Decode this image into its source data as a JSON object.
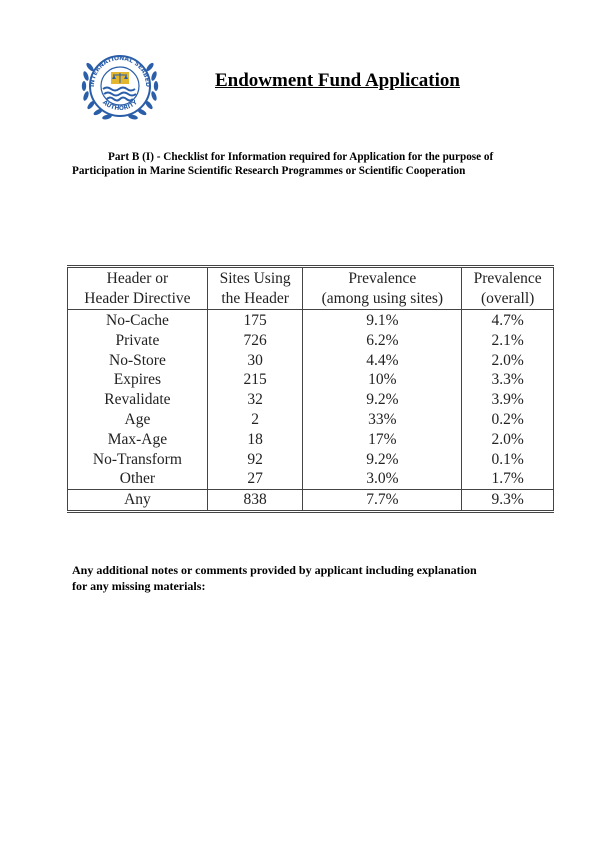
{
  "header": {
    "title": "Endowment Fund Application",
    "logo": {
      "name": "isa-emblem-logo",
      "text": "INTERNATIONAL SEABED AUTHORITY"
    }
  },
  "section": {
    "line1": "Part B (I) - Checklist for Information required for Application for the purpose of",
    "line2": "Participation in Marine Scientific Research Programmes or Scientific Cooperation"
  },
  "table": {
    "headers": [
      [
        "Header or",
        "Header Directive"
      ],
      [
        "Sites Using",
        "the Header"
      ],
      [
        "Prevalence",
        "(among using sites)"
      ],
      [
        "Prevalence",
        "(overall)"
      ]
    ],
    "rows": [
      [
        "No-Cache",
        "175",
        "9.1%",
        "4.7%"
      ],
      [
        "Private",
        "726",
        "6.2%",
        "2.1%"
      ],
      [
        "No-Store",
        "30",
        "4.4%",
        "2.0%"
      ],
      [
        "Expires",
        "215",
        "10%",
        "3.3%"
      ],
      [
        "Revalidate",
        "32",
        "9.2%",
        "3.9%"
      ],
      [
        "Age",
        "2",
        "33%",
        "0.2%"
      ],
      [
        "Max-Age",
        "18",
        "17%",
        "2.0%"
      ],
      [
        "No-Transform",
        "92",
        "9.2%",
        "0.1%"
      ],
      [
        "Other",
        "27",
        "3.0%",
        "1.7%"
      ]
    ],
    "total": [
      "Any",
      "838",
      "7.7%",
      "9.3%"
    ]
  },
  "notes": {
    "line1": "Any additional notes or comments provided by applicant including explanation",
    "line2": "for any missing materials:"
  }
}
